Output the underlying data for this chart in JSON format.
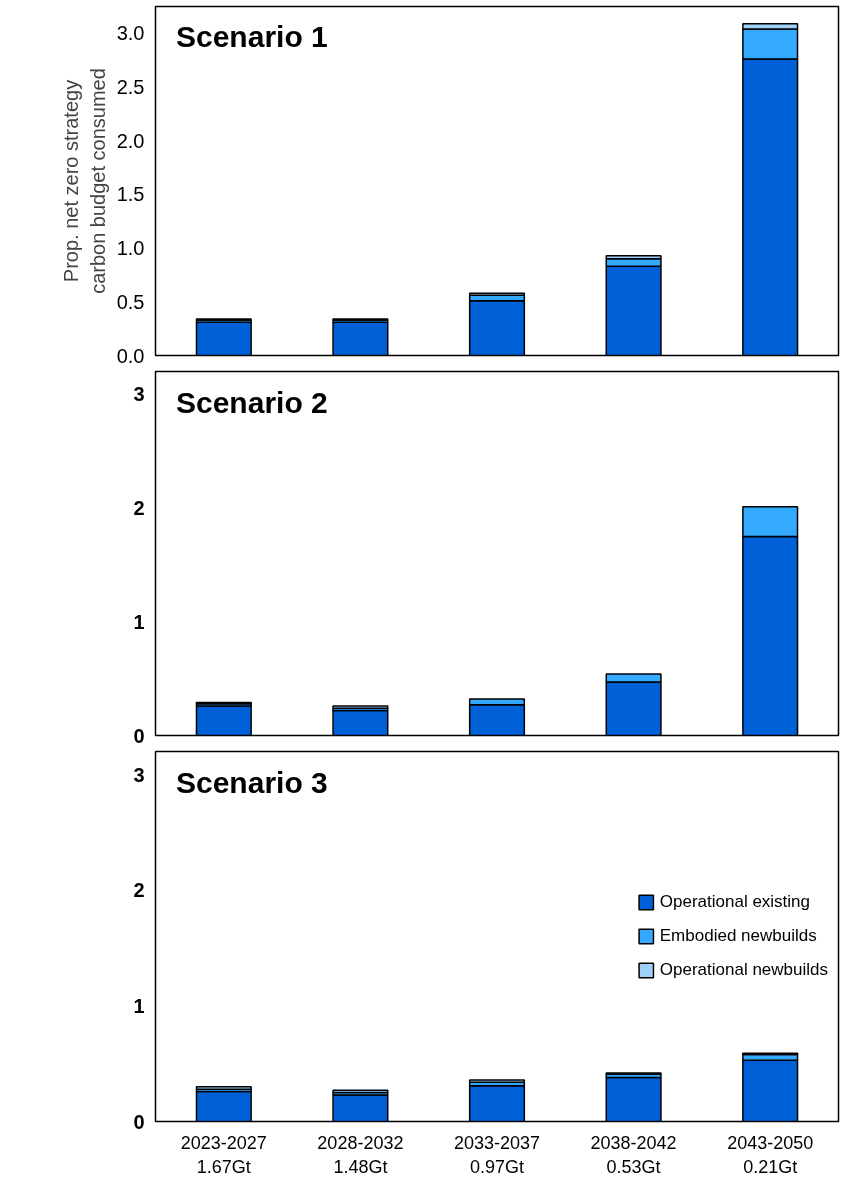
{
  "chart_data": [
    {
      "type": "bar",
      "stacked": true,
      "title": "Scenario 1",
      "ylabel": "Prop. net zero strategy\ncarbon budget consumed",
      "categories": [
        null,
        null,
        null,
        null,
        null
      ],
      "series": [
        {
          "color": "#0060d8",
          "values": [
            0.31,
            0.31,
            0.51,
            0.83,
            2.76
          ]
        },
        {
          "color": "#33aaff",
          "values": [
            0.02,
            0.02,
            0.05,
            0.07,
            0.28
          ]
        },
        {
          "color": "#a0d0f8",
          "values": [
            0.01,
            0.01,
            0.02,
            0.03,
            0.05
          ]
        }
      ],
      "ylim": [
        0,
        3.25
      ],
      "yticks": [
        {
          "value": 0,
          "label": "0.0"
        },
        0.5,
        {
          "value": 1,
          "label": "1.0"
        },
        1.5,
        {
          "value": 2,
          "label": "2.0"
        },
        2.5,
        {
          "value": 3,
          "label": "3.0"
        }
      ],
      "tick_labels": "y",
      "grid": false,
      "legend": false
    },
    {
      "type": "bar",
      "stacked": true,
      "title": "Scenario 2",
      "categories": [
        null,
        null,
        null,
        null,
        null
      ],
      "series": [
        {
          "color": "#0060d8",
          "values": [
            0.26,
            0.22,
            0.27,
            0.47,
            1.75
          ]
        },
        {
          "color": "#33aaff",
          "values": [
            0.02,
            0.02,
            0.05,
            0.07,
            0.26
          ]
        },
        {
          "color": "#a0d0f8",
          "values": [
            0.01,
            0.02,
            null,
            null,
            null
          ]
        }
      ],
      "ylim": [
        0,
        3.2
      ],
      "yticks": [
        0,
        1,
        2,
        3
      ],
      "tick_labels": "y",
      "grid": false,
      "legend": false
    },
    {
      "type": "bar",
      "stacked": true,
      "title": "Scenario 3",
      "categories": [
        "2023-2027\n1.67Gt",
        "2028-2032\n1.48Gt",
        "2033-2037\n0.97Gt",
        "2038-2042\n0.53Gt",
        "2043-2050\n0.21Gt"
      ],
      "series": [
        {
          "name": "Operational existing",
          "color": "#0060d8",
          "values": [
            0.26,
            0.23,
            0.31,
            0.38,
            0.53
          ]
        },
        {
          "name": "Embodied newbuilds",
          "color": "#33aaff",
          "values": [
            0.02,
            0.02,
            0.03,
            0.03,
            0.05
          ]
        },
        {
          "name": "Operational newbuilds",
          "color": "#a0d0f8",
          "values": [
            0.02,
            0.02,
            0.02,
            0.01,
            0.01
          ]
        }
      ],
      "ylim": [
        0,
        3.2
      ],
      "yticks": [
        0,
        1,
        2,
        3
      ],
      "grid": false,
      "legend": "right"
    }
  ]
}
